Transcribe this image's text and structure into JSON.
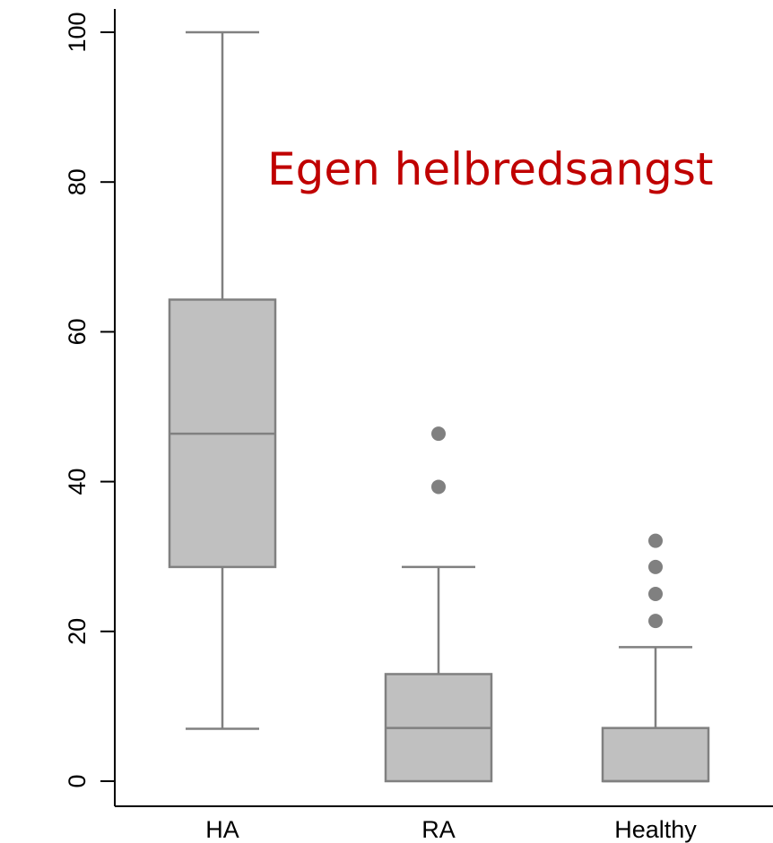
{
  "chart_data": {
    "type": "box",
    "title": "",
    "xlabel": "",
    "ylabel": "",
    "ylim": [
      -3,
      104
    ],
    "yticks": [
      0,
      20,
      40,
      60,
      80,
      100
    ],
    "categories": [
      "HA",
      "RA",
      "Healthy"
    ],
    "boxes": [
      {
        "category": "HA",
        "min": 7,
        "q1": 28.6,
        "median": 46.4,
        "q3": 64.3,
        "max": 100,
        "outliers": []
      },
      {
        "category": "RA",
        "min": 0,
        "q1": 0,
        "median": 7.1,
        "q3": 14.3,
        "max": 28.6,
        "outliers": [
          39.3,
          46.4
        ]
      },
      {
        "category": "Healthy",
        "min": 0,
        "q1": 0,
        "median": 0,
        "q3": 7.1,
        "max": 17.9,
        "outliers": [
          21.4,
          25,
          28.6,
          32.1
        ]
      }
    ],
    "annotation": "Egen helbredsangst",
    "colors": {
      "box_fill": "#c0c0c0",
      "box_stroke": "#808080",
      "outlier": "#808080",
      "annotation": "#c00000",
      "axis": "#000000"
    }
  }
}
